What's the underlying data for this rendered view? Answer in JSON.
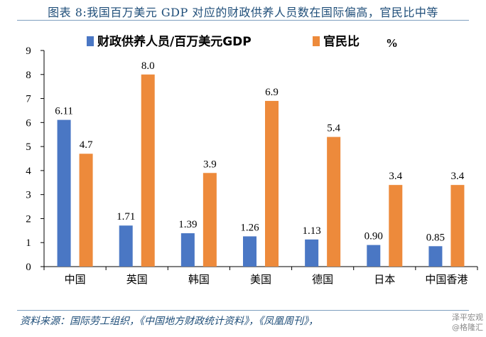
{
  "title": "图表 8:我国百万美元 GDP 对应的财政供养人员数在国际偏高，官民比中等",
  "source": "资料来源：国际劳工组织，《中国地方财政统计资料》，《凤凰周刊》，",
  "watermark": {
    "line1": "泽平宏观",
    "line2": "@格隆汇"
  },
  "legend": {
    "unit_label": "%"
  },
  "colors": {
    "series1": "#4a77c4",
    "series2": "#ed8a3b",
    "title": "#1f4e79"
  },
  "chart_data": {
    "type": "bar",
    "categories": [
      "中国",
      "英国",
      "韩国",
      "美国",
      "德国",
      "日本",
      "中国香港"
    ],
    "series": [
      {
        "name": "财政供养人员/百万美元GDP",
        "values": [
          6.11,
          1.71,
          1.39,
          1.26,
          1.13,
          0.9,
          0.85
        ],
        "labels": [
          "6.11",
          "1.71",
          "1.39",
          "1.26",
          "1.13",
          "0.90",
          "0.85"
        ]
      },
      {
        "name": "官民比",
        "values": [
          4.7,
          8.0,
          3.9,
          6.9,
          5.4,
          3.4,
          3.4
        ],
        "labels": [
          "4.7",
          "8.0",
          "3.9",
          "6.9",
          "5.4",
          "3.4",
          "3.4"
        ]
      }
    ],
    "ylim": [
      0,
      9
    ],
    "yticks": [
      "0",
      "1",
      "2",
      "3",
      "4",
      "5",
      "6",
      "7",
      "8",
      "9"
    ],
    "grid": false,
    "legend_position": "top"
  }
}
